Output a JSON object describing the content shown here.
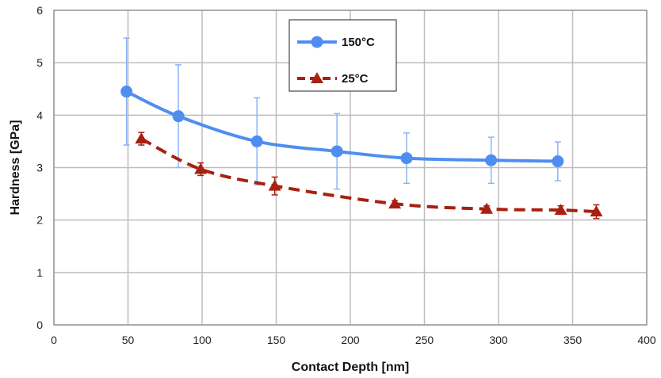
{
  "chart_data": {
    "type": "line",
    "xlabel": "Contact Depth [nm]",
    "ylabel": "Hardness [GPa]",
    "xlim": [
      0,
      400
    ],
    "ylim": [
      0,
      6
    ],
    "xticks": [
      "0",
      "50",
      "100",
      "150",
      "200",
      "250",
      "300",
      "350",
      "400"
    ],
    "yticks": [
      "0",
      "1",
      "2",
      "3",
      "4",
      "5",
      "6"
    ],
    "grid": true,
    "legend_position": "top-center",
    "series": [
      {
        "name": "150°C",
        "color": "#4f8ef0",
        "marker": "circle",
        "line_style": "solid",
        "x": [
          49,
          84,
          137,
          191,
          238,
          295,
          340
        ],
        "y": [
          4.45,
          3.98,
          3.5,
          3.31,
          3.18,
          3.14,
          3.12
        ],
        "err": [
          1.02,
          0.98,
          0.83,
          0.72,
          0.48,
          0.44,
          0.37
        ]
      },
      {
        "name": "25°C",
        "color": "#a82010",
        "marker": "triangle",
        "line_style": "dashed",
        "x": [
          59,
          99,
          149,
          230,
          292,
          342,
          366
        ],
        "y": [
          3.55,
          2.97,
          2.65,
          2.31,
          2.21,
          2.19,
          2.16
        ],
        "err": [
          0.12,
          0.12,
          0.17,
          0.06,
          0.06,
          0.08,
          0.13
        ]
      }
    ]
  }
}
